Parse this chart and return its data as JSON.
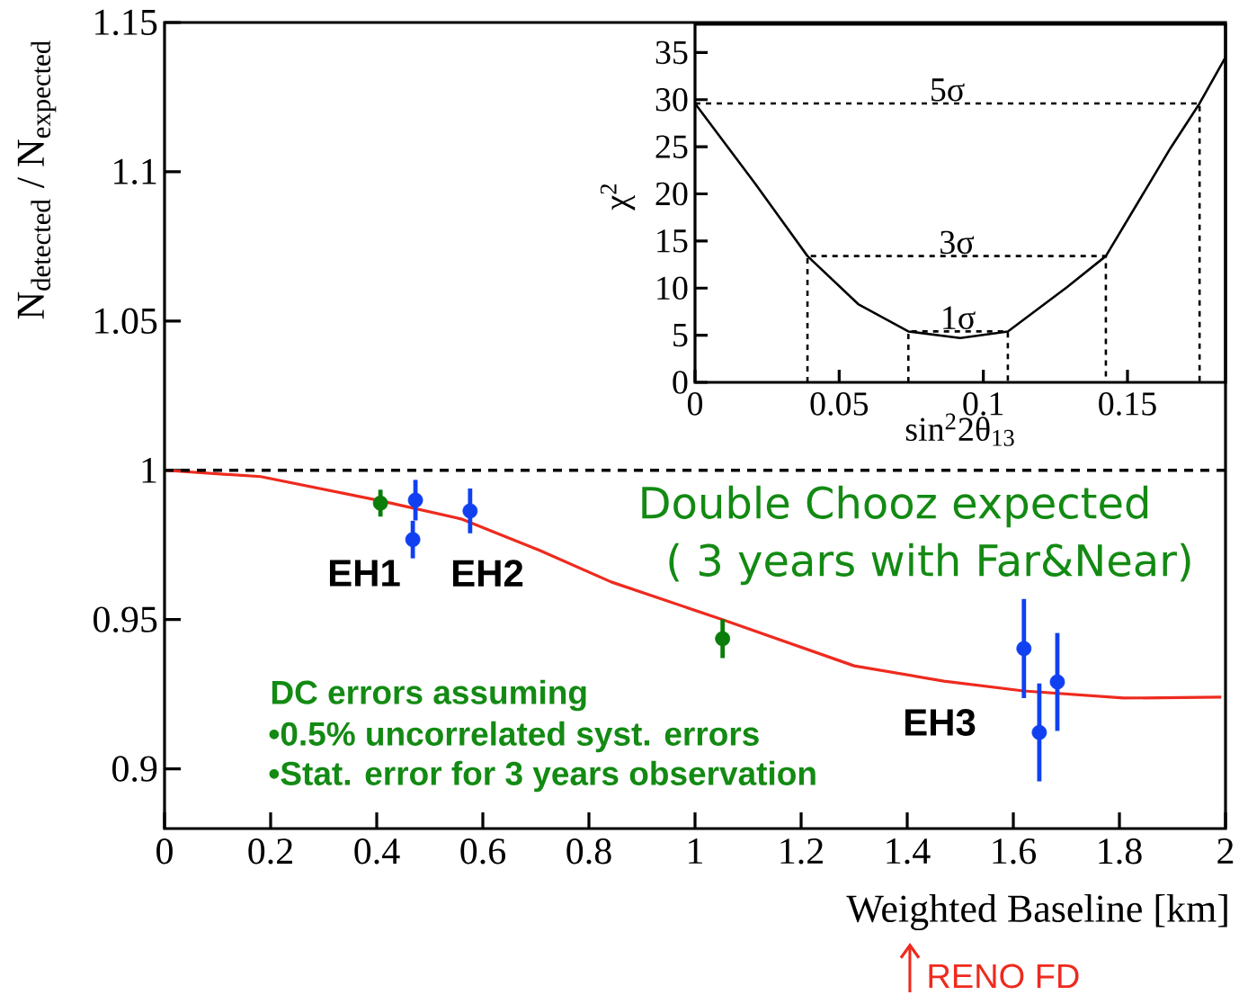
{
  "chart_data": [
    {
      "type": "line",
      "xlabel": "Weighted Baseline [km]",
      "ylabel": "N$_{detected}$ / N$_{expected}$",
      "xlim": [
        0,
        2
      ],
      "ylim": [
        0.88,
        1.15
      ],
      "xticks": [
        0,
        0.2,
        0.4,
        0.6,
        0.8,
        1,
        1.2,
        1.4,
        1.6,
        1.8,
        2
      ],
      "yticks": [
        0.9,
        0.95,
        1,
        1.05,
        1.1,
        1.15
      ],
      "series": [
        {
          "color": "#ee2a1e",
          "x": [
            0,
            0.181,
            0.407,
            0.559,
            0.707,
            0.842,
            1.053,
            1.3,
            1.469,
            1.619,
            1.808,
            1.992
          ],
          "values": [
            1.0,
            0.9979,
            0.9898,
            0.9837,
            0.9732,
            0.9626,
            0.9499,
            0.9345,
            0.9294,
            0.9261,
            0.9237,
            0.924
          ]
        },
        {
          "type": "scatter",
          "color": "#0a7d0a",
          "x": [
            0.407,
            1.052
          ],
          "values": [
            0.989,
            0.9436
          ],
          "errors": [
            0.0045,
            0.0065
          ]
        },
        {
          "type": "scatter",
          "color": "#1040f0",
          "x": [
            0.473,
            0.468,
            0.576,
            1.62,
            1.649,
            1.683
          ],
          "values": [
            0.99,
            0.9768,
            0.9864,
            0.9403,
            0.9122,
            0.9291
          ],
          "errors": [
            0.0068,
            0.0063,
            0.0075,
            0.0166,
            0.0164,
            0.0164
          ]
        }
      ],
      "ref_lines": [
        {
          "axis": "y",
          "value": 1,
          "line_style": "dashed",
          "color": "#000000"
        }
      ],
      "annotations": [
        "EH1",
        "EH2",
        "EH3",
        "DC errors assuming",
        "•0.5% uncorrelated syst. errors",
        "•Stat. error for 3 years observation",
        "Double Chooz expected",
        "( 3 years with Far&Near)",
        "RENO FD"
      ]
    },
    {
      "type": "line",
      "xlabel": "sin$^{2}$2θ$_{13}$",
      "ylabel": "χ$^{2}$",
      "xlim": [
        0,
        0.184
      ],
      "ylim": [
        0,
        38
      ],
      "xticks": [
        0,
        0.05,
        0.1,
        0.15
      ],
      "yticks": [
        0,
        5,
        10,
        15,
        20,
        25,
        30,
        35
      ],
      "series": [
        {
          "color": "#000000",
          "x": [
            0,
            0.0206,
            0.039,
            0.0566,
            0.074,
            0.092,
            0.1085,
            0.129,
            0.1425,
            0.165,
            0.175,
            0.184
          ],
          "values": [
            29.6,
            21.2,
            13.4,
            8.3,
            5.4,
            4.7,
            5.4,
            10.1,
            13.4,
            24.9,
            29.6,
            34.5
          ]
        },
        {
          "name": "5σ",
          "color": "#000000",
          "line_style": "dashed",
          "x": [
            0,
            0.175,
            0.175
          ],
          "values": [
            29.6,
            29.6,
            0
          ]
        },
        {
          "name": "3σ",
          "color": "#000000",
          "line_style": "dashed",
          "x": [
            0.039,
            0.039,
            0.1425,
            0.1425
          ],
          "values": [
            0,
            13.4,
            13.4,
            0
          ]
        },
        {
          "name": "1σ",
          "color": "#000000",
          "line_style": "dashed",
          "x": [
            0.074,
            0.074,
            0.1085,
            0.1085
          ],
          "values": [
            0,
            5.4,
            5.4,
            0
          ]
        }
      ]
    }
  ]
}
